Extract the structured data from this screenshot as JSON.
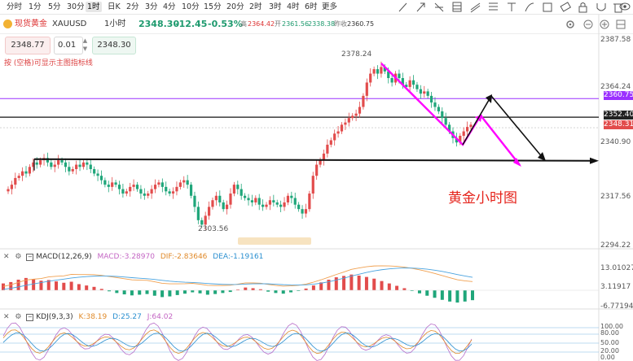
{
  "periods": [
    "分时",
    "1分",
    "5分",
    "30分",
    "1时",
    "日K",
    "2分",
    "3分",
    "4分",
    "10分",
    "15分",
    "20分",
    "2时",
    "3时",
    "4时",
    "6时",
    "更多"
  ],
  "active_period": "1时",
  "symbol": {
    "name": "现货黄金",
    "code": "XAUUSD",
    "timeframe": "1小时"
  },
  "quote": {
    "last": "2348.30",
    "change": "-12.45",
    "change_pct": "-0.53%",
    "high_label": "高",
    "high": "2364.42",
    "open_label": "开",
    "open": "2361.56",
    "low": "2338.38",
    "prev_close_label": "昨收",
    "prev_close": "2360.75"
  },
  "order": {
    "sell_price": "2348.77",
    "lot": "0.01",
    "buy_price": "2348.30"
  },
  "hint": "按 (空格)可显示主图指标线",
  "annotation": {
    "title": "黄金小时图",
    "high_label": "2378.24",
    "low_label": "2303.56"
  },
  "price_axis": [
    "2387.58",
    "2364.24",
    "2340.90",
    "2317.56",
    "2294.22"
  ],
  "price_tags": {
    "purple": "2360.75",
    "black": "2352.40",
    "red": "2348.31"
  },
  "macd": {
    "title": "MACD(12,26,9)",
    "macd": "MACD:-3.28970",
    "dif": "DIF:-2.83646",
    "dea": "DEA:-1.19161",
    "axis": [
      "13.01027",
      "3.11917",
      "-6.77194"
    ]
  },
  "kdj": {
    "title": "KDJ(9,3,3)",
    "k": "K:38.19",
    "d": "D:25.27",
    "j": "J:64.02",
    "axis": [
      "100.00",
      "80.00",
      "50.00",
      "20.00",
      "0.00"
    ]
  },
  "colors": {
    "up": "#e24c4c",
    "down": "#1fa67a",
    "purple": "#9b30ff",
    "magenta": "#ff00ff",
    "red_text": "#e5231b",
    "macd_dif": "#f0a050",
    "macd_dea": "#4aa3df"
  },
  "icons": [
    "minimize-icon",
    "line-tool-icon",
    "arrow-tool-icon",
    "bars-tool-icon",
    "grid-tool-icon",
    "channel-tool-icon",
    "fib-tool-icon",
    "text-tool-icon",
    "brush-tool-icon",
    "shape-tool-icon",
    "eraser-icon",
    "lock-icon",
    "magnet-icon",
    "delete-icon",
    "eye-icon",
    "settings-icon"
  ],
  "chart_data": {
    "type": "candlestick",
    "title": "黄金小时图",
    "ylim": [
      2294.22,
      2387.58
    ],
    "high": 2378.24,
    "low": 2303.56,
    "levels": [
      {
        "name": "purple",
        "value": 2360.75
      },
      {
        "name": "black",
        "value": 2352.4
      },
      {
        "name": "support",
        "value": 2333.5
      }
    ],
    "closes": [
      2320,
      2322,
      2325,
      2326,
      2328,
      2327,
      2330,
      2332,
      2331,
      2333,
      2334,
      2332,
      2330,
      2331,
      2333,
      2332,
      2330,
      2328,
      2329,
      2331,
      2330,
      2332,
      2331,
      2329,
      2327,
      2326,
      2324,
      2322,
      2321,
      2323,
      2322,
      2320,
      2318,
      2319,
      2321,
      2322,
      2320,
      2318,
      2317,
      2318,
      2320,
      2322,
      2323,
      2321,
      2319,
      2318,
      2319,
      2321,
      2323,
      2324,
      2322,
      2317,
      2312,
      2306,
      2304,
      2308,
      2312,
      2315,
      2317,
      2314,
      2311,
      2313,
      2318,
      2322,
      2320,
      2317,
      2316,
      2315,
      2314,
      2316,
      2313,
      2312,
      2313,
      2315,
      2314,
      2313,
      2312,
      2314,
      2317,
      2316,
      2313,
      2311,
      2309,
      2311,
      2318,
      2326,
      2331,
      2333,
      2336,
      2340,
      2342,
      2345,
      2346,
      2349,
      2350,
      2352,
      2353,
      2354,
      2357,
      2362,
      2368,
      2372,
      2374,
      2372,
      2375,
      2373,
      2370,
      2368,
      2372,
      2370,
      2367,
      2366,
      2369,
      2367,
      2365,
      2363,
      2364,
      2362,
      2359,
      2357,
      2355,
      2352,
      2349,
      2346,
      2343,
      2341,
      2344,
      2346,
      2348,
      2349
    ],
    "macd_hist": [
      2.0,
      2.4,
      3.1,
      3.6,
      3.2,
      2.8,
      3.0,
      2.6,
      2.2,
      2.5,
      1.8,
      1.4,
      1.0,
      0.4,
      -0.3,
      -0.8,
      -1.2,
      -1.5,
      -1.3,
      -1.1,
      -1.6,
      -2.0,
      -1.8,
      -1.4,
      -1.0,
      -0.6,
      -0.9,
      -1.3,
      -1.1,
      -0.8,
      -0.5,
      0.2,
      0.8,
      0.6,
      0.3,
      -0.4,
      -0.8,
      -1.0,
      -0.6,
      -0.2,
      0.5,
      1.4,
      2.3,
      3.1,
      3.8,
      4.2,
      4.6,
      4.3,
      3.9,
      3.4,
      2.7,
      2.0,
      1.3,
      0.6,
      -0.2,
      -0.9,
      -1.6,
      -2.2,
      -2.8,
      -3.3,
      -3.6,
      -3.3,
      -2.9
    ],
    "kdj": {
      "k_last": 38.19,
      "d_last": 25.27,
      "j_last": 64.02
    }
  }
}
